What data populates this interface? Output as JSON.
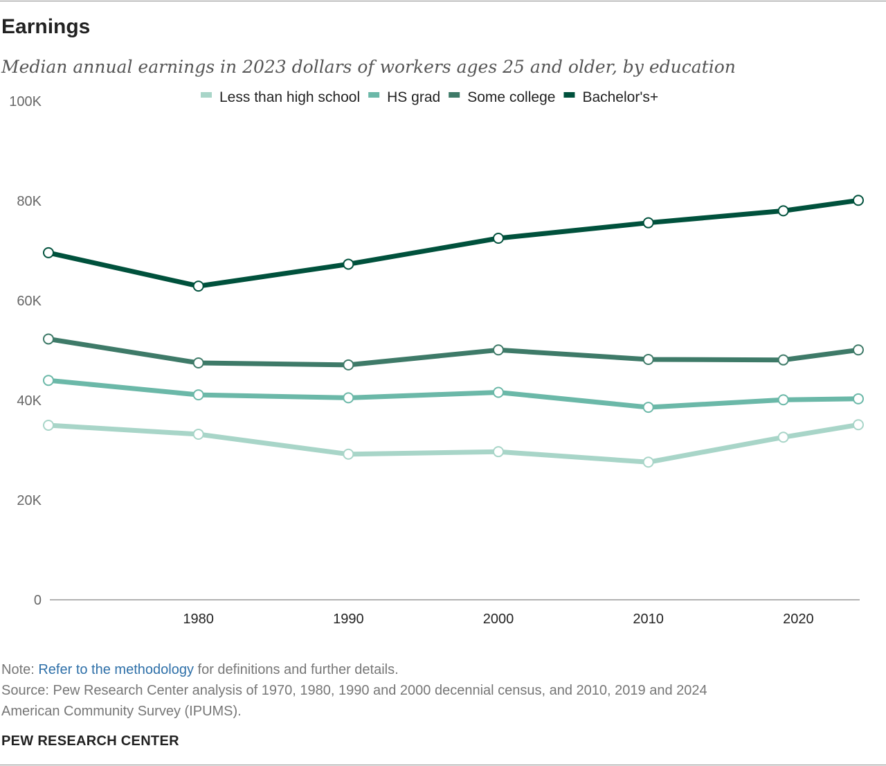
{
  "header": {
    "title": "Earnings",
    "subtitle": "Median annual earnings in 2023 dollars of workers ages 25 and older, by education"
  },
  "chart_data": {
    "type": "line",
    "x": [
      1970,
      1980,
      1990,
      2000,
      2010,
      2019,
      2024
    ],
    "x_ticks": [
      1980,
      1990,
      2000,
      2010,
      2020
    ],
    "x_tick_labels": [
      "1980",
      "1990",
      "2000",
      "2010",
      "2020"
    ],
    "xlim": [
      1970,
      2024
    ],
    "ylim": [
      0,
      100000
    ],
    "y_ticks": [
      0,
      20000,
      40000,
      60000,
      80000,
      100000
    ],
    "y_tick_labels": [
      "0",
      "20K",
      "40K",
      "60K",
      "80K",
      "100K"
    ],
    "grid": false,
    "legend_position": "top",
    "series": [
      {
        "name": "Less than high school",
        "color": "#a8d5c8",
        "values": [
          35000,
          33200,
          29200,
          29700,
          27600,
          32600,
          35100
        ]
      },
      {
        "name": "HS grad",
        "color": "#6bb8a8",
        "values": [
          44000,
          41100,
          40500,
          41600,
          38600,
          40100,
          40300
        ]
      },
      {
        "name": "Some college",
        "color": "#3e7a68",
        "values": [
          52300,
          47500,
          47100,
          50100,
          48200,
          48100,
          50100
        ]
      },
      {
        "name": "Bachelor's+",
        "color": "#00513c",
        "values": [
          69600,
          62900,
          67300,
          72500,
          75600,
          78000,
          80100
        ]
      }
    ]
  },
  "footer": {
    "note_prefix": "Note: ",
    "note_link": "Refer to the methodology",
    "note_suffix": " for definitions and further details.",
    "source_line1": "Source: Pew Research Center analysis of 1970, 1980, 1990 and 2000 decennial census, and 2010, 2019 and 2024",
    "source_line2": "American Community Survey (IPUMS).",
    "brand": "PEW RESEARCH CENTER"
  }
}
